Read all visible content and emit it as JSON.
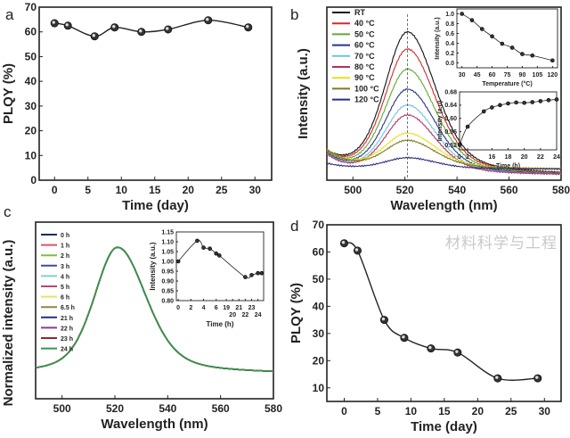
{
  "chart_data": [
    {
      "panel": "a",
      "type": "scatter-line",
      "xlabel": "Time (day)",
      "ylabel": "PLQY (%)",
      "xlim": [
        -2.3,
        32.5
      ],
      "ylim": [
        0,
        70
      ],
      "xticks": [
        0,
        5,
        10,
        15,
        20,
        25,
        30
      ],
      "yticks": [
        0,
        10,
        20,
        30,
        40,
        50,
        60,
        70
      ],
      "x": [
        0,
        2,
        6,
        9,
        13,
        17,
        23,
        29
      ],
      "y": [
        63.5,
        62.5,
        58.2,
        61.8,
        60,
        61,
        64.7,
        61.8
      ]
    },
    {
      "panel": "b",
      "type": "line",
      "xlabel": "Wavelength (nm)",
      "ylabel": "Intensity (a.u.)",
      "xlim": [
        490,
        580
      ],
      "xticks": [
        500,
        520,
        540,
        560,
        580
      ],
      "peak_nm": 521,
      "series": [
        {
          "name": "RT",
          "peak": 1.0,
          "color": "#111111"
        },
        {
          "name": "40 °C",
          "peak": 0.88,
          "color": "#d42a2a"
        },
        {
          "name": "50 °C",
          "peak": 0.74,
          "color": "#5cab32"
        },
        {
          "name": "60 °C",
          "peak": 0.6,
          "color": "#27358a"
        },
        {
          "name": "70 °C",
          "peak": 0.49,
          "color": "#6ec3dc"
        },
        {
          "name": "80 °C",
          "peak": 0.42,
          "color": "#b52d63"
        },
        {
          "name": "90 °C",
          "peak": 0.25,
          "color": "#e8e020"
        },
        {
          "name": "100 °C",
          "peak": 0.2,
          "color": "#7f7a20"
        },
        {
          "name": "120 °C",
          "peak": 0.08,
          "color": "#2a2d80"
        }
      ],
      "insets": [
        {
          "type": "scatter-line",
          "xlabel": "Temperature (°C)",
          "ylabel": "Intensity (a.u.)",
          "xlim": [
            25,
            125
          ],
          "ylim": [
            -0.1,
            1.1
          ],
          "xticks": [
            30,
            45,
            60,
            75,
            90,
            105,
            120
          ],
          "xtick_labels": [
            "30",
            "45",
            "60",
            "75",
            "90",
            "105",
            "120"
          ],
          "yticks": [
            0.0,
            0.2,
            0.4,
            0.6,
            0.8,
            1.0
          ],
          "ytick_labels": [
            "0.0",
            "0.2",
            "0.4",
            "0.6",
            "0.8",
            "1.0"
          ],
          "x": [
            30,
            40,
            50,
            60,
            70,
            80,
            90,
            100,
            120
          ],
          "y": [
            1.0,
            0.87,
            0.69,
            0.54,
            0.39,
            0.31,
            0.18,
            0.15,
            0.05
          ]
        },
        {
          "type": "scatter-line",
          "xlabel": "Time (h)",
          "ylabel": "Intensity (a.u)",
          "xlim": [
            0,
            12
          ],
          "ylim": [
            0.505,
            0.68
          ],
          "xticks": [
            0,
            1,
            4,
            6,
            8,
            10,
            12
          ],
          "xtick_labels": [
            "0",
            "2",
            "16",
            "18",
            "20",
            "22",
            "24"
          ],
          "yticks": [
            0.52,
            0.56,
            0.6,
            0.64,
            0.68
          ],
          "ytick_labels": [
            "0.52",
            "0.56",
            "0.60",
            "0.64",
            "0.68"
          ],
          "x": [
            0,
            1,
            3,
            4,
            5,
            6,
            7,
            8,
            9,
            10,
            11,
            12
          ],
          "y": [
            0.52,
            0.575,
            0.621,
            0.633,
            0.64,
            0.645,
            0.648,
            0.647,
            0.649,
            0.652,
            0.655,
            0.657
          ]
        }
      ]
    },
    {
      "panel": "c",
      "type": "line",
      "xlabel": "Wavelength (nm)",
      "ylabel": "Normalized intensity (a.u.)",
      "xlim": [
        490,
        580
      ],
      "xticks": [
        500,
        520,
        540,
        560,
        580
      ],
      "peak_nm": 521,
      "series": [
        {
          "name": "0 h",
          "color": "#1a2a60"
        },
        {
          "name": "1 h",
          "color": "#e0506a"
        },
        {
          "name": "2 h",
          "color": "#7ac043"
        },
        {
          "name": "3 h",
          "color": "#404a9a"
        },
        {
          "name": "4 h",
          "color": "#7fd0d8"
        },
        {
          "name": "5 h",
          "color": "#c0407a"
        },
        {
          "name": "6 h",
          "color": "#efe060"
        },
        {
          "name": "6.5 h",
          "color": "#8a8a3a"
        },
        {
          "name": "21 h",
          "color": "#22307a"
        },
        {
          "name": "22 h",
          "color": "#8a3a9a"
        },
        {
          "name": "23 h",
          "color": "#8a2a2a"
        },
        {
          "name": "24 h",
          "color": "#2f9a4a"
        }
      ],
      "insets": [
        {
          "type": "scatter-line",
          "xlabel": "Time (h)",
          "ylabel": "Intensity (a.u.)",
          "xlim": [
            -0.3,
            13.5
          ],
          "ylim": [
            0.8,
            1.15
          ],
          "xticks": [
            0,
            2,
            4,
            6,
            7.6,
            8.6,
            9.6,
            10.6,
            11.6,
            12.6
          ],
          "xtick_labels": [
            "0",
            "2",
            "4",
            "6",
            "19",
            "20",
            "21",
            "22",
            "23",
            "24"
          ],
          "yticks": [
            0.8,
            0.85,
            0.9,
            0.95,
            1.0,
            1.05,
            1.1,
            1.15
          ],
          "ytick_labels": [
            "0.80",
            "0.85",
            "0.90",
            "0.95",
            "1.00",
            "1.05",
            "1.10",
            "1.15"
          ],
          "x": [
            0,
            3,
            4,
            5,
            6,
            6.5,
            10.6,
            11.6,
            12.6,
            13.2
          ],
          "y": [
            1.0,
            1.105,
            1.07,
            1.065,
            1.04,
            1.03,
            0.92,
            0.93,
            0.94,
            0.94
          ]
        }
      ]
    },
    {
      "panel": "d",
      "type": "scatter-line",
      "xlabel": "Time (day)",
      "ylabel": "PLQY (%)",
      "xlim": [
        -2.6,
        32.5
      ],
      "ylim": [
        5,
        70
      ],
      "xticks": [
        0,
        5,
        10,
        15,
        20,
        25,
        30
      ],
      "yticks": [
        10,
        20,
        30,
        40,
        50,
        60,
        70
      ],
      "x": [
        0,
        2,
        6,
        9,
        13,
        17,
        23,
        29
      ],
      "y": [
        63.2,
        60.5,
        35,
        28.4,
        24.5,
        23,
        13.5,
        13.5
      ]
    }
  ],
  "panel_letters": [
    "a",
    "b",
    "c",
    "d"
  ],
  "watermark": "材料科学与工程"
}
